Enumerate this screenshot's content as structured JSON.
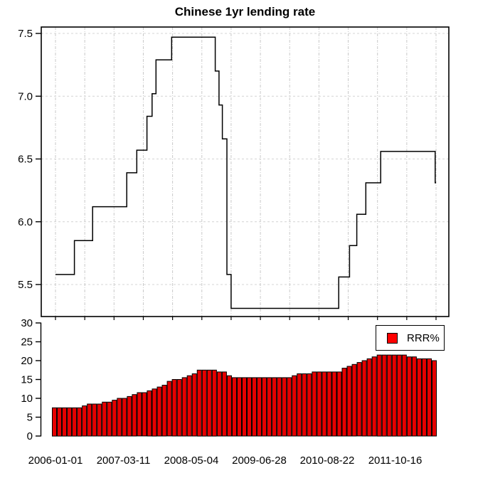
{
  "figure_title": "Chinese 1yr lending rate",
  "colors": {
    "background": "#FFFFFF",
    "line": "#000000",
    "box": "#000000",
    "grid_horizontal": "#D4D4D4",
    "grid_vertical": "#C9C9C9",
    "bar_fill": "#E60000",
    "legend_swatch": "#FF0000",
    "text": "#000000"
  },
  "chart_data": [
    {
      "type": "line",
      "style": "step",
      "title": "Chinese 1yr lending rate",
      "xlabel": "",
      "ylabel": "",
      "ylim": [
        5.2,
        7.55
      ],
      "grid": true,
      "y_tick_labels": [
        "5.5",
        "6.0",
        "6.5",
        "7.0",
        "7.5"
      ],
      "y_ticks": [
        5.5,
        6.0,
        6.5,
        7.0,
        7.5
      ],
      "x_tick_labels": [
        "2006-01-01",
        "2007-03-11",
        "2008-05-04",
        "2009-06-28",
        "2010-08-22",
        "2011-10-16"
      ],
      "x_start": "2006-01-01",
      "x_end": "2012-06-17",
      "series": [
        {
          "name": "Chinese 1yr lending rate",
          "change_points": [
            [
              "2006-01-01",
              5.58
            ],
            [
              "2006-04-28",
              5.85
            ],
            [
              "2006-08-19",
              6.12
            ],
            [
              "2007-03-18",
              6.39
            ],
            [
              "2007-05-19",
              6.57
            ],
            [
              "2007-07-21",
              6.84
            ],
            [
              "2007-08-22",
              7.02
            ],
            [
              "2007-09-15",
              7.29
            ],
            [
              "2007-12-21",
              7.47
            ],
            [
              "2008-09-16",
              7.2
            ],
            [
              "2008-10-09",
              6.93
            ],
            [
              "2008-10-30",
              6.66
            ],
            [
              "2008-11-27",
              5.58
            ],
            [
              "2008-12-23",
              5.31
            ],
            [
              "2010-10-20",
              5.56
            ],
            [
              "2010-12-26",
              5.81
            ],
            [
              "2011-02-09",
              6.06
            ],
            [
              "2011-04-06",
              6.31
            ],
            [
              "2011-07-07",
              6.56
            ],
            [
              "2012-06-08",
              6.31
            ]
          ]
        }
      ]
    },
    {
      "type": "bar",
      "title": "",
      "xlabel": "",
      "ylabel": "",
      "ylim": [
        0,
        30
      ],
      "y_ticks": [
        0,
        5,
        10,
        15,
        20,
        25,
        30
      ],
      "x_tick_labels": [
        "2006-01-01",
        "2007-03-11",
        "2008-05-04",
        "2009-06-28",
        "2010-08-22",
        "2011-10-16"
      ],
      "legend": [
        "RRR%"
      ],
      "legend_position": "top-right",
      "frequency": "monthly",
      "x_start_month": "2006-01",
      "x_end_month": "2012-05",
      "values": [
        7.5,
        7.5,
        7.5,
        7.5,
        7.5,
        7.5,
        8.0,
        8.5,
        8.5,
        8.5,
        9.0,
        9.0,
        9.5,
        10.0,
        10.0,
        10.5,
        11.0,
        11.5,
        11.5,
        12.0,
        12.5,
        13.0,
        13.5,
        14.5,
        15.0,
        15.0,
        15.5,
        16.0,
        16.5,
        17.5,
        17.5,
        17.5,
        17.5,
        17.0,
        17.0,
        16.0,
        15.5,
        15.5,
        15.5,
        15.5,
        15.5,
        15.5,
        15.5,
        15.5,
        15.5,
        15.5,
        15.5,
        15.5,
        16.0,
        16.5,
        16.5,
        16.5,
        17.0,
        17.0,
        17.0,
        17.0,
        17.0,
        17.0,
        18.0,
        18.5,
        19.0,
        19.5,
        20.0,
        20.5,
        21.0,
        21.5,
        21.5,
        21.5,
        21.5,
        21.5,
        21.5,
        21.0,
        21.0,
        20.5,
        20.5,
        20.5,
        20.0
      ]
    }
  ]
}
